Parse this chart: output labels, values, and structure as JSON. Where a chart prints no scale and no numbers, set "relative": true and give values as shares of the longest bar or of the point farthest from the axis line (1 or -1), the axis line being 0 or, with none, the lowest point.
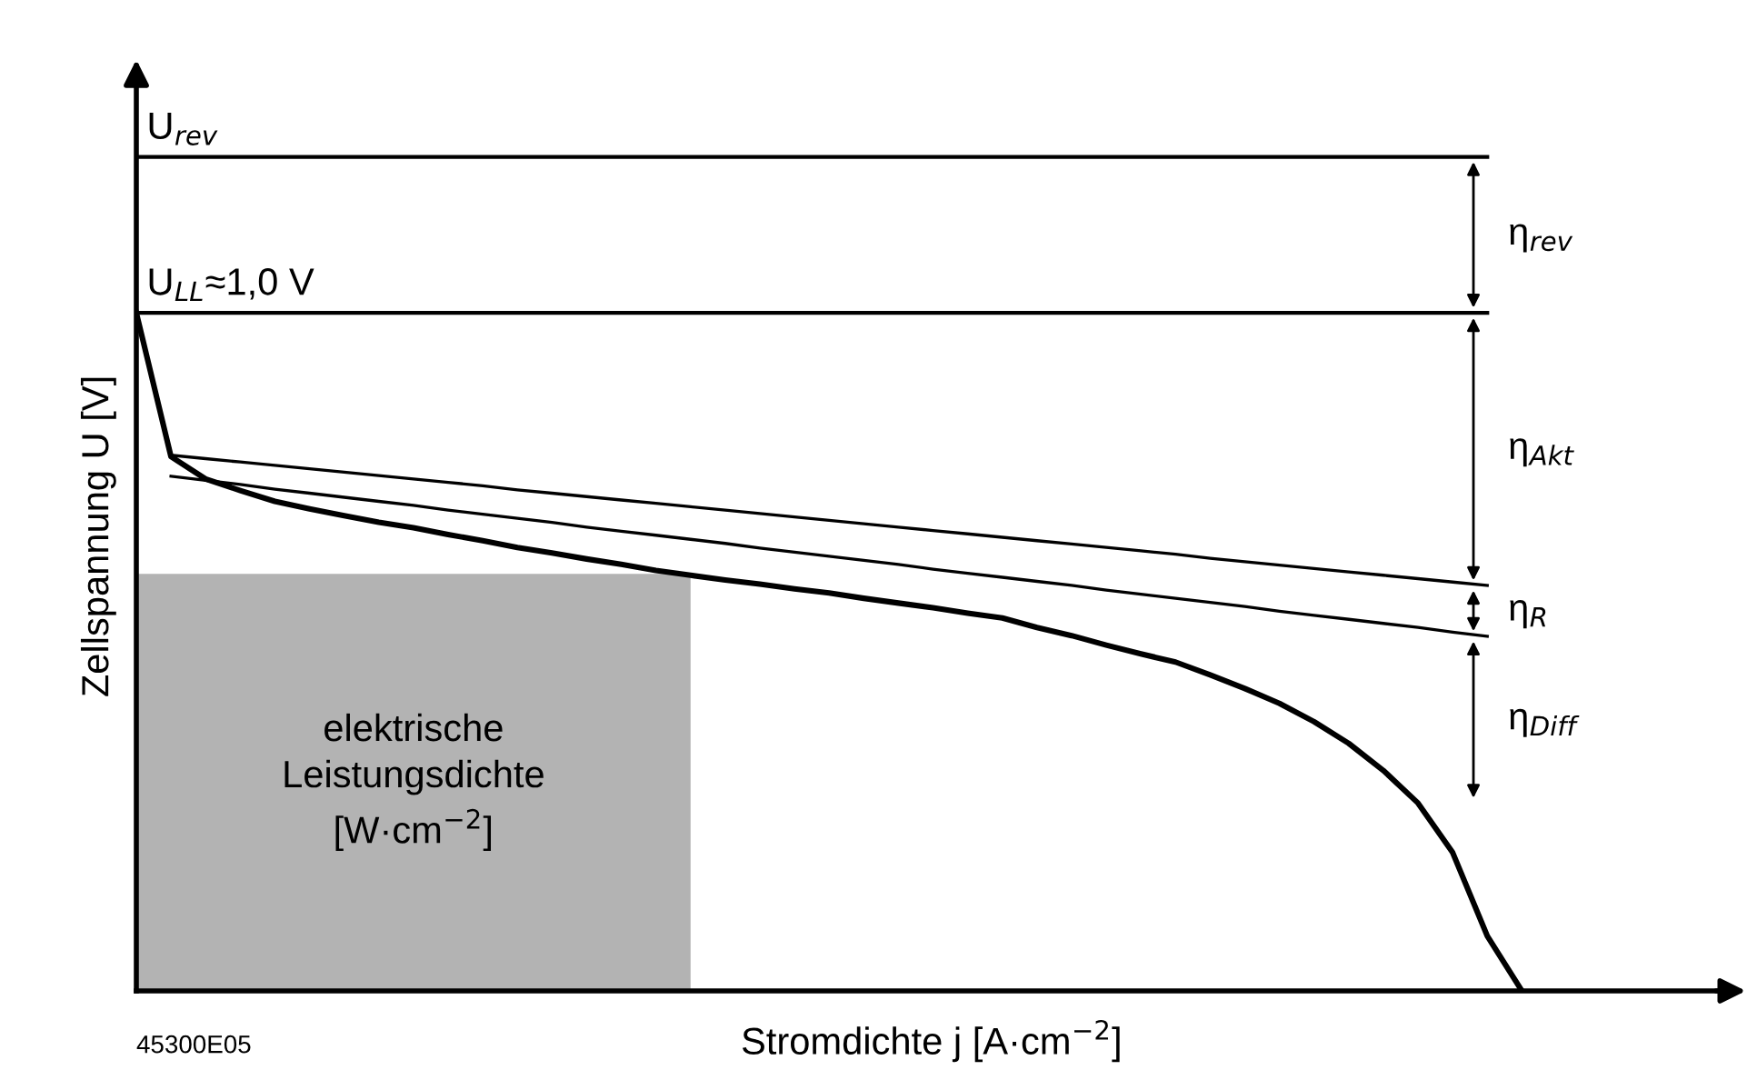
{
  "chart_data": {
    "type": "line",
    "relative": true,
    "xlabel": "Stromdichte j [A·cm$^{−2}$]",
    "ylabel": "Zellspannung U [V]",
    "marker": "none",
    "line_style": "solid",
    "categories": [
      null,
      null,
      null,
      null,
      null,
      null,
      null,
      null,
      null,
      null,
      null,
      null,
      null,
      null,
      null,
      null,
      null,
      null,
      null,
      null,
      null,
      null,
      null,
      null,
      null,
      null,
      null,
      null,
      null,
      null,
      null,
      null,
      null,
      null,
      null,
      null,
      null,
      null,
      null,
      null,
      null
    ],
    "series": [
      {
        "type": "area",
        "color": "#b3b3b3",
        "values": [
          0.615,
          0.615,
          0.615,
          0.615,
          0.615,
          0.615,
          0.615,
          0.615,
          0.615,
          0.615,
          0.615,
          0.615,
          0.615,
          0.615,
          0.615,
          0.615,
          0.615,
          null,
          null,
          null,
          null,
          null,
          null,
          null,
          null,
          null,
          null,
          null,
          null,
          null,
          null,
          null,
          null,
          null,
          null,
          null,
          null,
          null,
          null,
          null,
          null
        ]
      },
      {
        "color": "#000000",
        "values": [
          1,
          0.788,
          0.755,
          0.738,
          0.722,
          0.711,
          0.701,
          0.691,
          0.683,
          0.673,
          0.664,
          0.654,
          0.646,
          0.637,
          0.629,
          0.62,
          0.613,
          0.606,
          0.6,
          0.593,
          0.587,
          0.579,
          0.572,
          0.565,
          0.557,
          0.55,
          0.536,
          0.524,
          0.51,
          0.497,
          0.485,
          0.466,
          0.446,
          0.424,
          0.397,
          0.365,
          0.325,
          0.277,
          0.204,
          0.081,
          0
        ]
      },
      {
        "color": "#000000",
        "values": [
          null,
          0.79,
          0.785,
          0.78,
          0.775,
          0.77,
          0.765,
          0.76,
          0.755,
          0.75,
          0.745,
          0.739,
          0.734,
          0.729,
          0.724,
          0.719,
          0.714,
          0.709,
          0.704,
          0.699,
          0.694,
          0.689,
          0.684,
          0.679,
          0.674,
          0.669,
          0.664,
          0.659,
          0.654,
          0.649,
          0.644,
          0.638,
          0.633,
          0.628,
          0.623,
          0.618,
          0.613,
          0.608,
          0.603,
          0.598,
          null
        ]
      },
      {
        "color": "#000000",
        "values": [
          null,
          0.759,
          0.753,
          0.747,
          0.74,
          0.734,
          0.728,
          0.722,
          0.716,
          0.709,
          0.703,
          0.697,
          0.691,
          0.684,
          0.678,
          0.672,
          0.666,
          0.66,
          0.653,
          0.647,
          0.641,
          0.635,
          0.629,
          0.622,
          0.616,
          0.61,
          0.604,
          0.598,
          0.591,
          0.585,
          0.579,
          0.573,
          0.567,
          0.56,
          0.554,
          0.548,
          0.542,
          0.536,
          0.529,
          0.523,
          null
        ]
      }
    ],
    "ref_lines": [
      {
        "axis": "y",
        "value": 1.23,
        "label": "U$_{rev}$",
        "color": "#000000"
      },
      {
        "axis": "y",
        "value": 1,
        "label": "U$_{LL}$≈1,0 V",
        "color": "#000000"
      }
    ],
    "annotations": [
      "η$_{rev}$",
      "η$_{Akt}$",
      "η$_{R}$",
      "η$_{Diff}$",
      "elektrische\nLeistungsdichte\n[W·cm$^{−2}$]",
      "45300E05"
    ]
  }
}
